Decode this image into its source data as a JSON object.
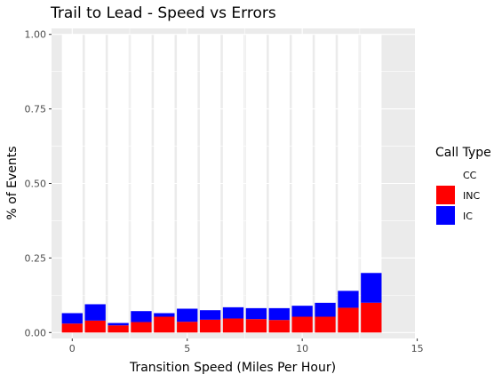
{
  "chart_data": {
    "type": "bar",
    "stacked": true,
    "title": "Trail to Lead - Speed vs Errors",
    "xlabel": "Transition Speed (Miles Per Hour)",
    "ylabel": "% of Events",
    "xlim": [
      -0.9,
      14.9
    ],
    "ylim": [
      -0.02,
      1.02
    ],
    "x_ticks": [
      0,
      5,
      10,
      15
    ],
    "x_tick_labels": [
      "0",
      "5",
      "10",
      "15"
    ],
    "y_ticks": [
      0,
      0.25,
      0.5,
      0.75,
      1.0
    ],
    "y_tick_labels": [
      "0.00",
      "0.25",
      "0.50",
      "0.75",
      "1.00"
    ],
    "grid": true,
    "panel_background": "#ebebeb",
    "legend_position": "right",
    "x": [
      0,
      1,
      2,
      3,
      4,
      5,
      6,
      7,
      8,
      9,
      10,
      11,
      12,
      13
    ],
    "series": [
      {
        "name": "CC",
        "color": "#ffffff",
        "values": [
          0.935,
          0.905,
          0.968,
          0.928,
          0.935,
          0.92,
          0.925,
          0.915,
          0.918,
          0.918,
          0.91,
          0.9,
          0.86,
          0.8
        ]
      },
      {
        "name": "IC",
        "color": "#0000ff",
        "values": [
          0.035,
          0.055,
          0.008,
          0.037,
          0.012,
          0.044,
          0.032,
          0.038,
          0.037,
          0.04,
          0.037,
          0.047,
          0.057,
          0.1
        ]
      },
      {
        "name": "INC",
        "color": "#ff0000",
        "values": [
          0.03,
          0.04,
          0.024,
          0.035,
          0.053,
          0.036,
          0.043,
          0.047,
          0.045,
          0.042,
          0.053,
          0.053,
          0.083,
          0.1
        ]
      }
    ],
    "stack_order_bottom_to_top": [
      "INC",
      "IC",
      "CC"
    ],
    "legend": {
      "title": "Call Type",
      "items": [
        {
          "label": "CC",
          "color": "#ffffff"
        },
        {
          "label": "INC",
          "color": "#ff0000"
        },
        {
          "label": "IC",
          "color": "#0000ff"
        }
      ]
    }
  }
}
